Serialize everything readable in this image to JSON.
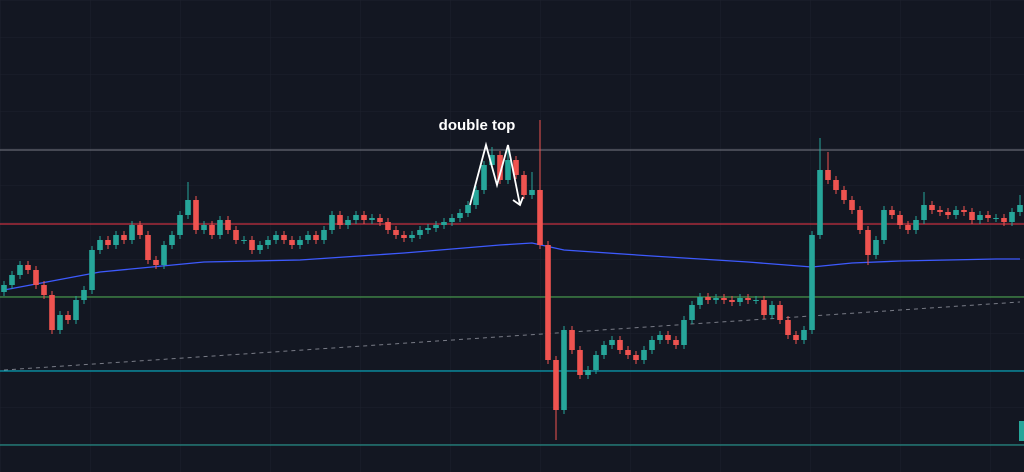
{
  "chart_data": {
    "type": "candlestick",
    "annotation": "double top",
    "xlim": [
      -0.5,
      127.5
    ],
    "ylim": [
      0,
      472
    ],
    "up_color": "#26a69a",
    "down_color": "#ef5350",
    "open": [
      180,
      187,
      197,
      207,
      202,
      187,
      177,
      142,
      157,
      152,
      172,
      182,
      222,
      232,
      227,
      237,
      232,
      247,
      237,
      212,
      207,
      227,
      237,
      257,
      272,
      242,
      247,
      237,
      252,
      242,
      232,
      232,
      222,
      227,
      232,
      237,
      232,
      227,
      232,
      237,
      232,
      242,
      257,
      247,
      252,
      257,
      252,
      254,
      250,
      242,
      237,
      234,
      237,
      242,
      244,
      247,
      250,
      254,
      259,
      267,
      282,
      307,
      317,
      292,
      312,
      297,
      277,
      282,
      227,
      112,
      62,
      142,
      122,
      97,
      102,
      117,
      127,
      132,
      122,
      117,
      112,
      122,
      132,
      137,
      132,
      127,
      152,
      167,
      175,
      172,
      174,
      172,
      170,
      174,
      172,
      172,
      157,
      167,
      152,
      137,
      132,
      142,
      237,
      302,
      292,
      282,
      272,
      262,
      242,
      217,
      232,
      262,
      257,
      247,
      242,
      252,
      267,
      262,
      260,
      257,
      262,
      260,
      252,
      257,
      254,
      254,
      250,
      260
    ],
    "high": [
      191,
      201,
      211,
      211,
      206,
      191,
      181,
      161,
      161,
      176,
      186,
      226,
      236,
      236,
      241,
      241,
      251,
      251,
      241,
      216,
      231,
      241,
      261,
      290,
      276,
      251,
      251,
      256,
      256,
      246,
      236,
      236,
      231,
      236,
      241,
      241,
      236,
      236,
      241,
      241,
      246,
      261,
      261,
      256,
      261,
      261,
      258,
      258,
      254,
      246,
      241,
      241,
      246,
      248,
      251,
      254,
      258,
      263,
      271,
      286,
      311,
      325,
      321,
      325,
      316,
      301,
      300,
      352,
      231,
      116,
      146,
      146,
      126,
      106,
      121,
      131,
      136,
      136,
      126,
      121,
      126,
      136,
      141,
      141,
      136,
      156,
      171,
      179,
      179,
      178,
      178,
      176,
      178,
      178,
      176,
      176,
      171,
      171,
      156,
      141,
      146,
      241,
      334,
      320,
      296,
      286,
      276,
      266,
      246,
      236,
      266,
      266,
      261,
      251,
      256,
      280,
      271,
      266,
      264,
      266,
      266,
      264,
      261,
      261,
      258,
      258,
      264,
      277
    ],
    "low": [
      176,
      183,
      193,
      198,
      183,
      173,
      138,
      138,
      148,
      148,
      168,
      178,
      218,
      223,
      223,
      228,
      228,
      233,
      208,
      203,
      203,
      223,
      233,
      253,
      238,
      238,
      233,
      233,
      238,
      228,
      228,
      218,
      218,
      223,
      228,
      228,
      223,
      223,
      228,
      228,
      228,
      238,
      243,
      243,
      248,
      248,
      248,
      246,
      238,
      233,
      230,
      230,
      233,
      238,
      240,
      243,
      246,
      250,
      255,
      263,
      278,
      303,
      288,
      288,
      293,
      273,
      273,
      223,
      108,
      32,
      58,
      118,
      93,
      93,
      98,
      113,
      123,
      118,
      113,
      108,
      108,
      118,
      128,
      128,
      123,
      123,
      148,
      163,
      168,
      168,
      168,
      166,
      166,
      168,
      168,
      153,
      153,
      148,
      133,
      128,
      128,
      138,
      233,
      288,
      278,
      268,
      258,
      238,
      207,
      213,
      228,
      253,
      243,
      238,
      238,
      248,
      258,
      256,
      253,
      253,
      256,
      248,
      248,
      250,
      250,
      246,
      246,
      256
    ],
    "close": [
      187,
      197,
      207,
      202,
      187,
      177,
      142,
      157,
      152,
      172,
      182,
      222,
      232,
      227,
      237,
      232,
      247,
      237,
      212,
      207,
      227,
      237,
      257,
      272,
      242,
      247,
      237,
      252,
      242,
      232,
      232,
      222,
      227,
      232,
      237,
      232,
      227,
      232,
      237,
      232,
      242,
      257,
      247,
      252,
      257,
      252,
      254,
      250,
      242,
      237,
      234,
      237,
      242,
      244,
      247,
      250,
      254,
      259,
      267,
      282,
      307,
      317,
      292,
      312,
      297,
      277,
      282,
      227,
      112,
      62,
      142,
      122,
      97,
      102,
      117,
      127,
      132,
      122,
      117,
      112,
      122,
      132,
      137,
      132,
      127,
      152,
      167,
      175,
      172,
      174,
      172,
      170,
      174,
      172,
      172,
      157,
      167,
      152,
      137,
      132,
      142,
      237,
      302,
      292,
      282,
      272,
      262,
      242,
      217,
      232,
      262,
      257,
      247,
      242,
      252,
      267,
      262,
      260,
      257,
      262,
      260,
      252,
      257,
      254,
      254,
      250,
      260,
      267
    ],
    "moving_average": {
      "color": "#3d5afe",
      "x": [
        0,
        12,
        25,
        37,
        50,
        62,
        66,
        70,
        81,
        93,
        101,
        106,
        112,
        124,
        127
      ],
      "values": [
        182,
        200,
        210,
        212,
        219,
        227,
        229,
        222,
        216,
        210,
        205,
        209,
        211,
        213,
        213
      ]
    },
    "trend_line": {
      "color": "#787b86",
      "x": [
        0,
        127
      ],
      "values": [
        102,
        170
      ]
    },
    "levels": [
      {
        "value": 322,
        "color": "#787b86"
      },
      {
        "value": 248,
        "color": "#f23645"
      },
      {
        "value": 175,
        "color": "#4caf50"
      },
      {
        "value": 101,
        "color": "#00bcd4"
      },
      {
        "value": 27,
        "color": "#26a69a"
      }
    ]
  }
}
